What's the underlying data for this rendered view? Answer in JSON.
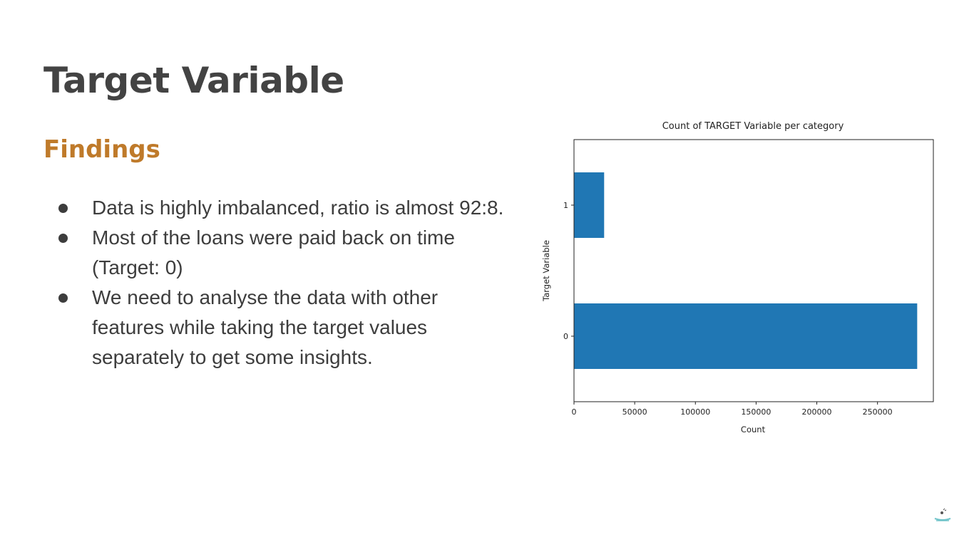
{
  "slide": {
    "title": "Target Variable",
    "heading": "Findings",
    "bullets": [
      "Data is highly imbalanced, ratio is almost 92:8.",
      "Most of the loans were paid back on time (Target: 0)",
      "We need to analyse the data with other features while taking the target values separately to get some insights."
    ]
  },
  "chart_data": {
    "type": "bar",
    "orientation": "horizontal",
    "title": "Count of TARGET Variable per category",
    "xlabel": "Count",
    "ylabel": "Target Variable",
    "categories": [
      "0",
      "1"
    ],
    "values": [
      282686,
      24825
    ],
    "xlim": [
      0,
      296000
    ],
    "xticks": [
      0,
      50000,
      100000,
      150000,
      200000,
      250000
    ],
    "xtick_labels": [
      "0",
      "50000",
      "100000",
      "150000",
      "200000",
      "250000"
    ],
    "bar_color": "#2077b4",
    "grid": false
  }
}
